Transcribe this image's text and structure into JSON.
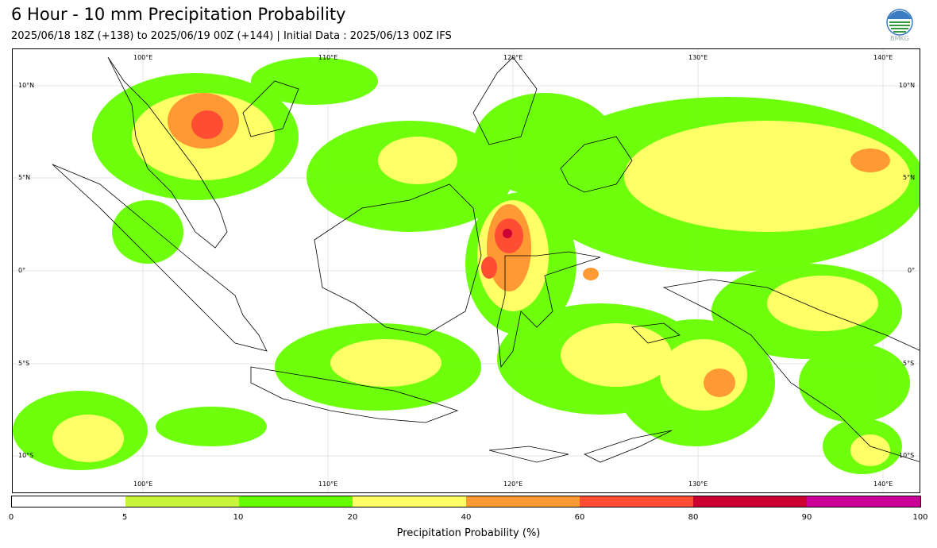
{
  "header": {
    "title": "6 Hour - 10 mm Precipitation Probability",
    "subtitle": "2025/06/18 18Z (+138) to 2025/06/19 00Z (+144) | Initial Data : 2025/06/13 00Z IFS",
    "logo_text": "BMKG"
  },
  "map": {
    "lon_labels": [
      "100°E",
      "110°E",
      "120°E",
      "130°E",
      "140°E"
    ],
    "lat_labels": [
      "10°N",
      "5°N",
      "0°",
      "5°S",
      "10°S"
    ]
  },
  "colorbar": {
    "label": "Precipitation Probability (%)",
    "ticks": [
      "0",
      "5",
      "10",
      "20",
      "40",
      "60",
      "80",
      "90",
      "100"
    ],
    "colors": [
      "#ffffff",
      "#c8f53c",
      "#66ff00",
      "#ffff66",
      "#ff9933",
      "#ff4d33",
      "#cc0033",
      "#cc0099"
    ]
  },
  "colors": {
    "p5_10": "#c8f53c",
    "p10_20": "#66ff00",
    "p20_40": "#ffff66",
    "p40_60": "#ff9933",
    "p60_80": "#ff4d33",
    "p80_90": "#cc0033",
    "p90_100": "#cc0099"
  }
}
